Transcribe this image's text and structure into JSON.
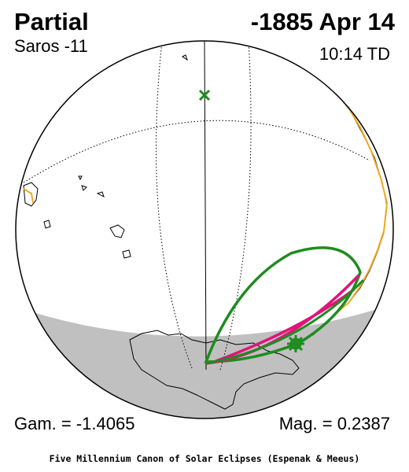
{
  "header": {
    "eclipse_type": "Partial",
    "date": "-1885 Apr 14",
    "saros": "Saros -11",
    "time": "10:14 TD"
  },
  "footer": {
    "gamma": "Gam. = -1.4065",
    "magnitude": "Mag. = 0.2387",
    "credit": "Five Millennium Canon of Solar Eclipses (Espenak & Meeus)"
  },
  "colors": {
    "night_shade": "#c0c0c0",
    "penumbra_limit": "#1e8c1e",
    "max_eclipse_curve": "#e0147a",
    "coastline_highlight": "#f0a820",
    "marker": "#1e8c1e"
  },
  "icons": {
    "greatest_eclipse_marker": "x-marker-icon",
    "subsolar_marker": "asterisk-marker-icon"
  }
}
